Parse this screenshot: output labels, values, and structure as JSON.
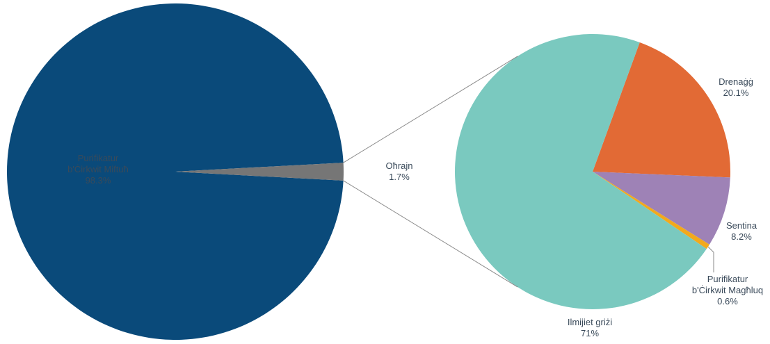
{
  "chart_data": {
    "type": "pie",
    "main_pie": {
      "slices": [
        {
          "label_lines": [
            "Purifikatur",
            "b'Ċirkwit Miftuħ"
          ],
          "pct_label": "98.3%",
          "value": 98.3,
          "color": "#0a4a7a"
        },
        {
          "label_lines": [
            "Oħrajn"
          ],
          "pct_label": "1.7%",
          "value": 1.7,
          "color": "#767676"
        }
      ]
    },
    "breakdown_pie": {
      "of": "Oħrajn",
      "slices": [
        {
          "label_lines": [
            "Drenaġġ"
          ],
          "pct_label": "20.1%",
          "value": 20.1,
          "color": "#e26a35"
        },
        {
          "label_lines": [
            "Sentina"
          ],
          "pct_label": "8.2%",
          "value": 8.2,
          "color": "#9e82b6"
        },
        {
          "label_lines": [
            "Purifikatur",
            "b'Ċirkwit Magħluq"
          ],
          "pct_label": "0.6%",
          "value": 0.6,
          "color": "#f2a91c"
        },
        {
          "label_lines": [
            "Ilmijiet griżi"
          ],
          "pct_label": "71%",
          "value": 71.0,
          "color": "#7ac9bf"
        }
      ]
    },
    "text_color": "#3a4a5a",
    "connector_color": "#8a8a8a"
  }
}
